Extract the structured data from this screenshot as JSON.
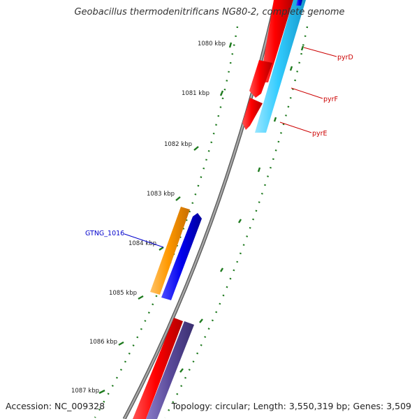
{
  "title": "Geobacillus thermodenitrificans NG80-2, complete genome",
  "footer": {
    "accession": "Accession: NC_009328",
    "summary": "Topology: circular; Length: 3,550,319 bp; Genes: 3,509"
  },
  "ticks": [
    "1080 kbp",
    "1081 kbp",
    "1082 kbp",
    "1083 kbp",
    "1084 kbp",
    "1085 kbp",
    "1086 kbp",
    "1087 kbp"
  ],
  "gene_labels": [
    {
      "name": "pyrD",
      "color": "#cc0000"
    },
    {
      "name": "pyrF",
      "color": "#cc0000"
    },
    {
      "name": "pyrE",
      "color": "#cc0000"
    },
    {
      "name": "GTNG_1016",
      "color": "#0000cc"
    }
  ],
  "colors": {
    "backbone": "#8a8a8a",
    "tick_dots": "#1e7a1e",
    "red_gene": "#ff0000",
    "cyan_gene": "#33ccff",
    "blue_gene": "#0000ee",
    "orange_gene": "#ff9900",
    "purple_gene": "#5a4a9a"
  }
}
